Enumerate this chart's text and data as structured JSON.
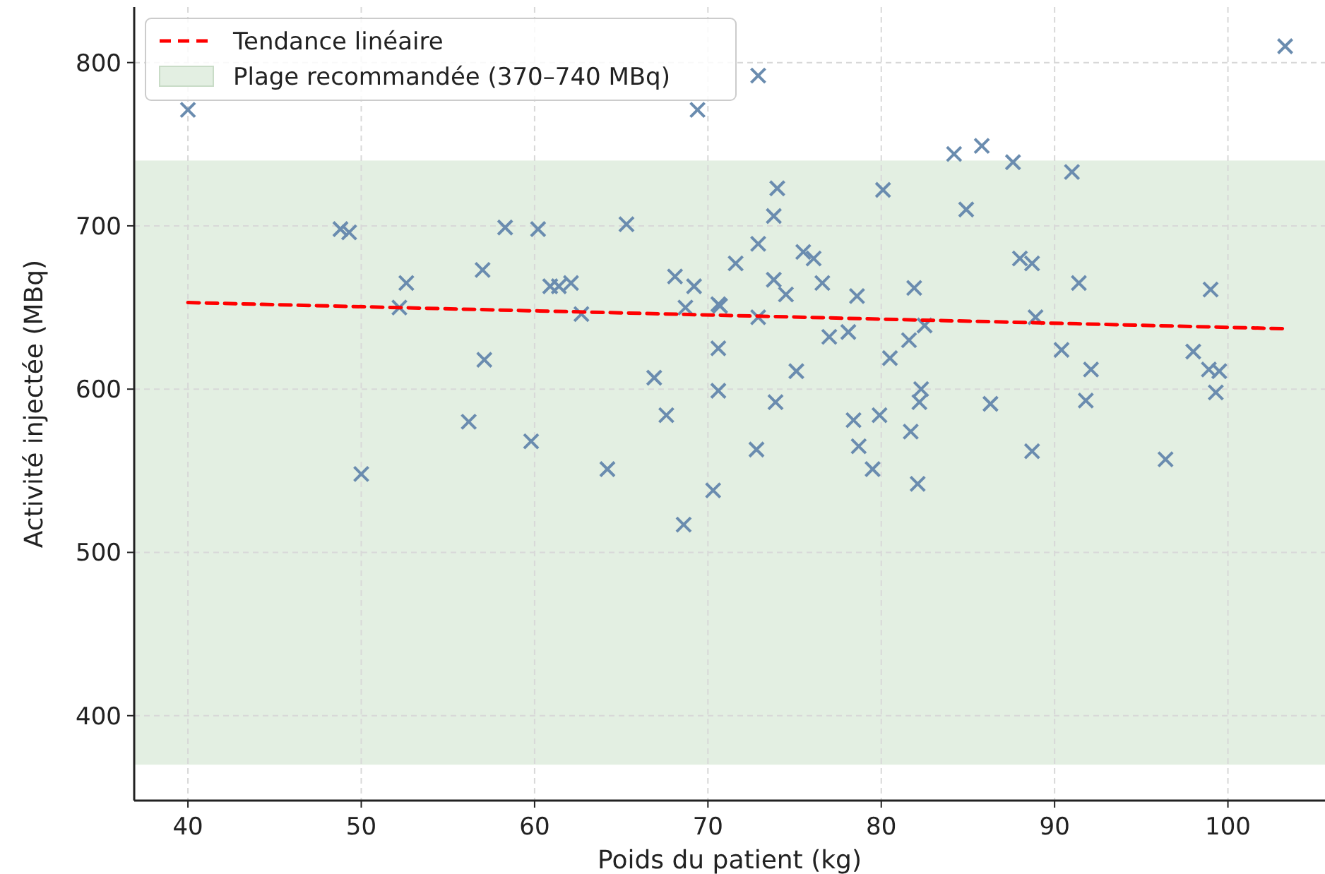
{
  "chart_data": {
    "type": "scatter",
    "xlabel": "Poids du patient (kg)",
    "ylabel": "Activité injectée (MBq)",
    "xlim": [
      36.9,
      105.6
    ],
    "ylim": [
      348,
      834
    ],
    "xticks": [
      40,
      50,
      60,
      70,
      80,
      90,
      100
    ],
    "yticks": [
      400,
      500,
      600,
      700,
      800
    ],
    "grid": true,
    "legend": "top left",
    "marker": "cross",
    "bands": [
      {
        "axis": "y",
        "from": 370,
        "to": 740,
        "label": "Plage recommandée (370–740 MBq)",
        "color": "#e3efe2"
      }
    ],
    "series": [
      {
        "color": "#6a8caf",
        "x": [
          40.0,
          48.8,
          49.3,
          50.0,
          52.2,
          52.6,
          57.0,
          57.1,
          56.2,
          58.3,
          59.8,
          60.2,
          60.9,
          61.4,
          62.1,
          62.7,
          64.2,
          65.3,
          66.9,
          67.6,
          68.1,
          68.7,
          68.6,
          69.2,
          69.4,
          70.3,
          70.6,
          70.7,
          70.6,
          70.6,
          71.6,
          72.8,
          72.9,
          72.9,
          72.9,
          73.8,
          74.0,
          73.8,
          73.9,
          74.5,
          75.1,
          75.5,
          76.1,
          76.6,
          77.0,
          78.1,
          78.4,
          78.6,
          78.7,
          79.5,
          79.9,
          80.1,
          80.5,
          81.6,
          81.7,
          81.9,
          82.1,
          82.3,
          82.2,
          82.5,
          84.2,
          84.9,
          85.8,
          86.3,
          87.6,
          88.0,
          88.7,
          88.9,
          88.7,
          90.4,
          91.0,
          91.4,
          91.8,
          92.1,
          96.4,
          98.0,
          98.9,
          99.0,
          99.5,
          99.3,
          103.3
        ],
        "values": [
          771,
          698,
          696,
          548,
          650,
          665,
          673,
          618,
          580,
          699,
          568,
          698,
          663,
          663,
          665,
          646,
          551,
          701,
          607,
          584,
          669,
          650,
          517,
          663,
          771,
          538,
          652,
          651,
          625,
          599,
          677,
          563,
          792,
          689,
          644,
          706,
          723,
          667,
          592,
          658,
          611,
          684,
          680,
          665,
          632,
          635,
          581,
          657,
          565,
          551,
          584,
          722,
          619,
          630,
          574,
          662,
          542,
          600,
          592,
          639,
          744,
          710,
          749,
          591,
          739,
          680,
          677,
          644,
          562,
          624,
          733,
          665,
          593,
          612,
          557,
          623,
          612,
          661,
          611,
          598,
          810
        ]
      },
      {
        "type": "line",
        "name": "Tendance linéaire",
        "color": "#ff0000",
        "line_style": "dashed",
        "marker": "none",
        "x": [
          40,
          103.3
        ],
        "values": [
          653,
          637
        ]
      }
    ]
  }
}
